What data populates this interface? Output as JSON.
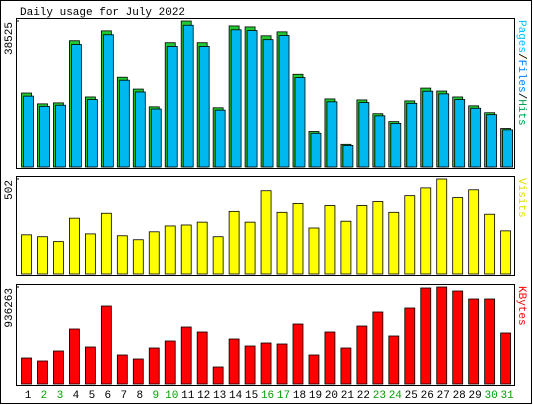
{
  "chart_data": [
    {
      "type": "bar",
      "title": "Daily usage for July 2022",
      "right_label_parts": [
        {
          "text": "Pages",
          "color": "#00c0ff"
        },
        {
          "text": "/",
          "color": "#000000"
        },
        {
          "text": "Files",
          "color": "#0080ff"
        },
        {
          "text": "/",
          "color": "#000000"
        },
        {
          "text": "Hits",
          "color": "#00a050"
        }
      ],
      "ylim": [
        0,
        38525
      ],
      "yticks": [
        38525
      ],
      "series": [
        {
          "name": "Hits",
          "color": "#22c833",
          "values": [
            19523,
            16659,
            16920,
            33318,
            18481,
            35921,
            23687,
            20564,
            15878,
            32798,
            38525,
            32798,
            15618,
            37223,
            36963,
            34620,
            35661,
            24468,
            9371,
            17961,
            5987,
            17700,
            14056,
            11974,
            17440,
            20824,
            20043,
            18481,
            16139,
            14317,
            10152
          ]
        },
        {
          "name": "Files",
          "color": "#00b8f0",
          "values": [
            18700,
            16000,
            16300,
            32300,
            17800,
            34900,
            22900,
            19800,
            15300,
            31800,
            37400,
            31800,
            15000,
            36200,
            36000,
            33600,
            34700,
            23600,
            8900,
            17200,
            5700,
            17000,
            13500,
            11500,
            16800,
            20000,
            19300,
            17800,
            15500,
            13800,
            9800
          ]
        }
      ]
    },
    {
      "type": "bar",
      "right_label_parts": [
        {
          "text": "Visits",
          "color": "#e0e000"
        }
      ],
      "ylim": [
        0,
        502
      ],
      "yticks": [
        502
      ],
      "series": [
        {
          "name": "Visits",
          "color": "#ffff00",
          "values": [
            207,
            197,
            171,
            295,
            212,
            321,
            202,
            181,
            223,
            254,
            259,
            274,
            197,
            331,
            274,
            440,
            326,
            373,
            243,
            362,
            279,
            362,
            383,
            326,
            414,
            455,
            502,
            404,
            445,
            316,
            228
          ]
        }
      ]
    },
    {
      "type": "bar",
      "right_label_parts": [
        {
          "text": "KBytes",
          "color": "#ff0000"
        }
      ],
      "ylim": [
        0,
        936263
      ],
      "yticks": [
        936263
      ],
      "categories": [
        "1",
        "2",
        "3",
        "4",
        "5",
        "6",
        "7",
        "8",
        "9",
        "10",
        "11",
        "12",
        "13",
        "14",
        "15",
        "16",
        "17",
        "18",
        "19",
        "20",
        "21",
        "22",
        "23",
        "24",
        "25",
        "26",
        "27",
        "28",
        "29",
        "30",
        "31"
      ],
      "category_colors": [
        "#000000",
        "#00a000",
        "#00a000",
        "#000000",
        "#000000",
        "#000000",
        "#000000",
        "#000000",
        "#00a000",
        "#00a000",
        "#000000",
        "#000000",
        "#000000",
        "#000000",
        "#000000",
        "#00a000",
        "#00a000",
        "#000000",
        "#000000",
        "#000000",
        "#000000",
        "#000000",
        "#00a000",
        "#00a000",
        "#000000",
        "#000000",
        "#000000",
        "#000000",
        "#000000",
        "#00a000",
        "#00a000"
      ],
      "series": [
        {
          "name": "KBytes",
          "color": "#ff0000",
          "values": [
            250950,
            222000,
            318500,
            530900,
            357100,
            752900,
            279900,
            241300,
            347500,
            415000,
            550200,
            501900,
            164100,
            434300,
            366800,
            395700,
            386100,
            579100,
            279900,
            501900,
            347500,
            559800,
            695000,
            463300,
            733600,
            926600,
            936263,
            897600,
            820400,
            820400,
            492300
          ]
        }
      ]
    }
  ]
}
